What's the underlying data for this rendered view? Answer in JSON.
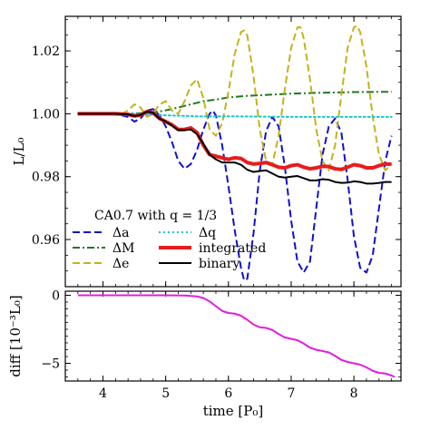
{
  "chart_data": [
    {
      "type": "line",
      "ylabel": "L/L₀",
      "xlim": [
        3.4,
        8.75
      ],
      "ylim": [
        0.945,
        1.031
      ],
      "yticks": [
        0.96,
        0.98,
        1.0,
        1.02
      ],
      "ytick_labels": [
        "0.96",
        "0.98",
        "1.00",
        "1.02"
      ],
      "legend_title": "CA0.7 with q = 1/3",
      "legend_position": "lower-left",
      "grid": false,
      "series": [
        {
          "name": "Δa",
          "color": "#1010d0",
          "style": "dashed",
          "width": 2,
          "points": [
            [
              3.6,
              1.0
            ],
            [
              4.1,
              1.0
            ],
            [
              4.3,
              0.9995
            ],
            [
              4.4,
              0.999
            ],
            [
              4.5,
              0.9975
            ],
            [
              4.6,
              0.9985
            ],
            [
              4.7,
              1.001
            ],
            [
              4.8,
              1.0015
            ],
            [
              4.9,
              0.9995
            ],
            [
              5.0,
              0.996
            ],
            [
              5.1,
              0.991
            ],
            [
              5.2,
              0.985
            ],
            [
              5.3,
              0.9825
            ],
            [
              5.4,
              0.984
            ],
            [
              5.5,
              0.9885
            ],
            [
              5.6,
              0.995
            ],
            [
              5.7,
              1.0
            ],
            [
              5.75,
              1.001
            ],
            [
              5.8,
              0.9995
            ],
            [
              5.9,
              0.99
            ],
            [
              6.0,
              0.977
            ],
            [
              6.1,
              0.963
            ],
            [
              6.2,
              0.951
            ],
            [
              6.25,
              0.947
            ],
            [
              6.3,
              0.9475
            ],
            [
              6.4,
              0.962
            ],
            [
              6.5,
              0.982
            ],
            [
              6.6,
              0.9945
            ],
            [
              6.7,
              0.999
            ],
            [
              6.8,
              0.996
            ],
            [
              6.9,
              0.983
            ],
            [
              7.0,
              0.966
            ],
            [
              7.1,
              0.953
            ],
            [
              7.2,
              0.9495
            ],
            [
              7.3,
              0.953
            ],
            [
              7.4,
              0.97
            ],
            [
              7.5,
              0.987
            ],
            [
              7.6,
              0.996
            ],
            [
              7.7,
              0.9985
            ],
            [
              7.8,
              0.994
            ],
            [
              7.9,
              0.979
            ],
            [
              8.0,
              0.961
            ],
            [
              8.1,
              0.951
            ],
            [
              8.2,
              0.9495
            ],
            [
              8.3,
              0.955
            ],
            [
              8.4,
              0.97
            ],
            [
              8.5,
              0.985
            ],
            [
              8.6,
              0.993
            ]
          ]
        },
        {
          "name": "ΔM",
          "color": "#1f7a1f",
          "style": "dashdot",
          "width": 2,
          "points": [
            [
              3.6,
              1.0
            ],
            [
              4.3,
              1.0
            ],
            [
              4.6,
              1.0002
            ],
            [
              4.9,
              1.0007
            ],
            [
              5.1,
              1.0015
            ],
            [
              5.3,
              1.0025
            ],
            [
              5.5,
              1.0035
            ],
            [
              5.6,
              1.004
            ],
            [
              5.8,
              1.0045
            ],
            [
              6.0,
              1.0052
            ],
            [
              6.3,
              1.0057
            ],
            [
              6.6,
              1.006
            ],
            [
              7.0,
              1.0064
            ],
            [
              7.5,
              1.0067
            ],
            [
              8.0,
              1.0069
            ],
            [
              8.6,
              1.007
            ]
          ]
        },
        {
          "name": "Δe",
          "color": "#c4b21c",
          "style": "dashed",
          "width": 2,
          "points": [
            [
              3.6,
              1.0
            ],
            [
              4.3,
              1.0
            ],
            [
              4.4,
              1.001
            ],
            [
              4.5,
              1.003
            ],
            [
              4.6,
              1.002
            ],
            [
              4.7,
              0.999
            ],
            [
              4.8,
              1.0
            ],
            [
              4.9,
              1.003
            ],
            [
              5.0,
              1.004
            ],
            [
              5.1,
              1.001
            ],
            [
              5.2,
              1.0
            ],
            [
              5.3,
              1.004
            ],
            [
              5.4,
              1.009
            ],
            [
              5.5,
              1.011
            ],
            [
              5.6,
              1.005
            ],
            [
              5.7,
              0.995
            ],
            [
              5.8,
              0.993
            ],
            [
              5.9,
              0.997
            ],
            [
              6.0,
              1.007
            ],
            [
              6.1,
              1.019
            ],
            [
              6.2,
              1.026
            ],
            [
              6.25,
              1.0265
            ],
            [
              6.3,
              1.025
            ],
            [
              6.4,
              1.012
            ],
            [
              6.5,
              0.995
            ],
            [
              6.6,
              0.985
            ],
            [
              6.7,
              0.984
            ],
            [
              6.8,
              0.993
            ],
            [
              6.9,
              1.008
            ],
            [
              7.0,
              1.021
            ],
            [
              7.1,
              1.0275
            ],
            [
              7.15,
              1.0275
            ],
            [
              7.2,
              1.024
            ],
            [
              7.3,
              1.011
            ],
            [
              7.4,
              0.995
            ],
            [
              7.5,
              0.985
            ],
            [
              7.6,
              0.982
            ],
            [
              7.7,
              0.99
            ],
            [
              7.8,
              1.006
            ],
            [
              7.9,
              1.021
            ],
            [
              8.0,
              1.0275
            ],
            [
              8.05,
              1.028
            ],
            [
              8.1,
              1.026
            ],
            [
              8.2,
              1.015
            ],
            [
              8.3,
              0.999
            ],
            [
              8.4,
              0.987
            ],
            [
              8.5,
              0.982
            ],
            [
              8.6,
              0.984
            ]
          ]
        },
        {
          "name": "Δq",
          "color": "#19c8c8",
          "style": "dotted",
          "width": 2,
          "points": [
            [
              3.6,
              1.0
            ],
            [
              4.5,
              1.0
            ],
            [
              5.0,
              0.9995
            ],
            [
              5.5,
              0.9992
            ],
            [
              6.0,
              0.9992
            ],
            [
              6.5,
              0.9991
            ],
            [
              7.0,
              0.999
            ],
            [
              7.5,
              0.999
            ],
            [
              8.0,
              0.999
            ],
            [
              8.6,
              0.999
            ]
          ]
        },
        {
          "name": "integrated",
          "color": "#e81c1c",
          "style": "solid",
          "width": 4,
          "points": [
            [
              3.6,
              1.0
            ],
            [
              4.2,
              1.0
            ],
            [
              4.4,
              0.9998
            ],
            [
              4.5,
              0.9993
            ],
            [
              4.6,
              0.9996
            ],
            [
              4.7,
              1.0007
            ],
            [
              4.8,
              1.0003
            ],
            [
              4.9,
              0.9985
            ],
            [
              5.0,
              0.9975
            ],
            [
              5.1,
              0.9965
            ],
            [
              5.2,
              0.995
            ],
            [
              5.3,
              0.995
            ],
            [
              5.4,
              0.9955
            ],
            [
              5.5,
              0.994
            ],
            [
              5.6,
              0.99
            ],
            [
              5.7,
              0.987
            ],
            [
              5.8,
              0.9865
            ],
            [
              5.9,
              0.986
            ],
            [
              6.0,
              0.9855
            ],
            [
              6.1,
              0.986
            ],
            [
              6.2,
              0.9858
            ],
            [
              6.3,
              0.9845
            ],
            [
              6.4,
              0.984
            ],
            [
              6.5,
              0.9842
            ],
            [
              6.6,
              0.9845
            ],
            [
              6.7,
              0.9838
            ],
            [
              6.8,
              0.983
            ],
            [
              6.9,
              0.9828
            ],
            [
              7.0,
              0.9835
            ],
            [
              7.1,
              0.9838
            ],
            [
              7.2,
              0.983
            ],
            [
              7.3,
              0.9825
            ],
            [
              7.4,
              0.9828
            ],
            [
              7.5,
              0.9833
            ],
            [
              7.6,
              0.9832
            ],
            [
              7.7,
              0.9825
            ],
            [
              7.8,
              0.9823
            ],
            [
              7.9,
              0.983
            ],
            [
              8.0,
              0.9838
            ],
            [
              8.1,
              0.9835
            ],
            [
              8.2,
              0.9828
            ],
            [
              8.3,
              0.9828
            ],
            [
              8.4,
              0.9835
            ],
            [
              8.5,
              0.984
            ],
            [
              8.6,
              0.984
            ]
          ]
        },
        {
          "name": "binary",
          "color": "#000000",
          "style": "solid",
          "width": 2,
          "points": [
            [
              3.6,
              1.0
            ],
            [
              4.2,
              1.0
            ],
            [
              4.4,
              0.9998
            ],
            [
              4.5,
              0.9993
            ],
            [
              4.6,
              0.9996
            ],
            [
              4.7,
              1.0007
            ],
            [
              4.8,
              1.0003
            ],
            [
              4.9,
              0.9985
            ],
            [
              5.0,
              0.9975
            ],
            [
              5.1,
              0.9962
            ],
            [
              5.2,
              0.9948
            ],
            [
              5.3,
              0.9948
            ],
            [
              5.4,
              0.995
            ],
            [
              5.5,
              0.9935
            ],
            [
              5.6,
              0.9905
            ],
            [
              5.7,
              0.987
            ],
            [
              5.8,
              0.9855
            ],
            [
              5.9,
              0.9845
            ],
            [
              6.0,
              0.9845
            ],
            [
              6.1,
              0.9845
            ],
            [
              6.2,
              0.9838
            ],
            [
              6.3,
              0.9822
            ],
            [
              6.4,
              0.9815
            ],
            [
              6.5,
              0.9818
            ],
            [
              6.6,
              0.982
            ],
            [
              6.7,
              0.981
            ],
            [
              6.8,
              0.98
            ],
            [
              6.9,
              0.9797
            ],
            [
              7.0,
              0.98
            ],
            [
              7.1,
              0.9802
            ],
            [
              7.2,
              0.9795
            ],
            [
              7.3,
              0.9788
            ],
            [
              7.4,
              0.9788
            ],
            [
              7.5,
              0.9792
            ],
            [
              7.6,
              0.979
            ],
            [
              7.7,
              0.9783
            ],
            [
              7.8,
              0.978
            ],
            [
              7.9,
              0.9781
            ],
            [
              8.0,
              0.9785
            ],
            [
              8.1,
              0.9783
            ],
            [
              8.2,
              0.9778
            ],
            [
              8.3,
              0.9778
            ],
            [
              8.4,
              0.978
            ],
            [
              8.5,
              0.9783
            ],
            [
              8.6,
              0.9783
            ]
          ]
        }
      ]
    },
    {
      "type": "line",
      "xlabel": "time [P₀]",
      "ylabel": "diff [10⁻³L₀]",
      "xlim": [
        3.4,
        8.75
      ],
      "ylim": [
        -6.3,
        0.3
      ],
      "xticks": [
        4,
        5,
        6,
        7,
        8
      ],
      "xtick_labels": [
        "4",
        "5",
        "6",
        "7",
        "8"
      ],
      "yticks": [
        -5,
        0
      ],
      "ytick_labels": [
        "−5",
        "0"
      ],
      "grid": false,
      "series": [
        {
          "name": "",
          "color": "#e01ee0",
          "style": "solid",
          "width": 2,
          "points": [
            [
              3.6,
              0.0
            ],
            [
              4.0,
              0.0
            ],
            [
              4.5,
              0.0
            ],
            [
              5.0,
              0.0
            ],
            [
              5.3,
              -0.02
            ],
            [
              5.5,
              -0.08
            ],
            [
              5.6,
              -0.2
            ],
            [
              5.7,
              -0.45
            ],
            [
              5.8,
              -0.8
            ],
            [
              5.9,
              -1.15
            ],
            [
              6.0,
              -1.3
            ],
            [
              6.1,
              -1.35
            ],
            [
              6.2,
              -1.5
            ],
            [
              6.3,
              -1.8
            ],
            [
              6.4,
              -2.15
            ],
            [
              6.5,
              -2.35
            ],
            [
              6.6,
              -2.4
            ],
            [
              6.7,
              -2.55
            ],
            [
              6.8,
              -2.85
            ],
            [
              6.9,
              -3.1
            ],
            [
              7.0,
              -3.2
            ],
            [
              7.1,
              -3.3
            ],
            [
              7.2,
              -3.55
            ],
            [
              7.3,
              -3.85
            ],
            [
              7.4,
              -4.0
            ],
            [
              7.5,
              -4.1
            ],
            [
              7.6,
              -4.2
            ],
            [
              7.7,
              -4.45
            ],
            [
              7.8,
              -4.75
            ],
            [
              7.9,
              -4.9
            ],
            [
              8.0,
              -5.0
            ],
            [
              8.1,
              -5.1
            ],
            [
              8.2,
              -5.3
            ],
            [
              8.3,
              -5.55
            ],
            [
              8.4,
              -5.7
            ],
            [
              8.5,
              -5.75
            ],
            [
              8.6,
              -5.9
            ],
            [
              8.65,
              -6.0
            ]
          ]
        }
      ]
    }
  ]
}
